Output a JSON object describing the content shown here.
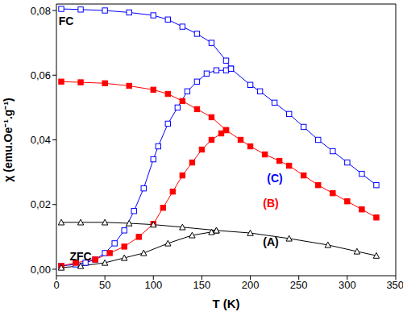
{
  "chart_data": {
    "type": "line",
    "x_label": "T (K)",
    "y_label": "χ (emu.Oe⁻¹.g⁻¹)",
    "xlim": [
      0,
      350
    ],
    "xticks": [
      0,
      50,
      100,
      150,
      200,
      250,
      300,
      350
    ],
    "ylim": [
      -0.002,
      0.082
    ],
    "yticks": [
      {
        "value": 0,
        "label": "0,00"
      },
      {
        "value": 0.02,
        "label": "0,02"
      },
      {
        "value": 0.04,
        "label": "0,04"
      },
      {
        "value": 0.06,
        "label": "0,06"
      },
      {
        "value": 0.08,
        "label": "0,08"
      }
    ],
    "grid": false,
    "annotations": [
      {
        "text": "FC",
        "color": "#000000"
      },
      {
        "text": "ZFC",
        "color": "#000000"
      },
      {
        "text": "(C)",
        "color": "#0000ff"
      },
      {
        "text": "(B)",
        "color": "#ff0000"
      },
      {
        "text": "(A)",
        "color": "#000000"
      }
    ],
    "series": [
      {
        "color": "#0000ff",
        "marker": "square-open",
        "x": [
          5,
          25,
          50,
          75,
          100,
          115,
          130,
          145,
          160,
          175,
          180,
          200,
          210,
          225,
          240,
          255,
          270,
          285,
          300,
          315,
          330
        ],
        "values": [
          0.0805,
          0.0803,
          0.08,
          0.0794,
          0.0785,
          0.0772,
          0.075,
          0.0728,
          0.07,
          0.0645,
          0.062,
          0.057,
          0.055,
          0.0515,
          0.048,
          0.044,
          0.04,
          0.0365,
          0.033,
          0.0295,
          0.026
        ]
      },
      {
        "color": "#0000ff",
        "marker": "square-open",
        "x": [
          5,
          20,
          30,
          40,
          50,
          60,
          70,
          80,
          90,
          100,
          105,
          115,
          125,
          135,
          145,
          155,
          165,
          175,
          180
        ],
        "values": [
          0.001,
          0.0015,
          0.002,
          0.003,
          0.005,
          0.008,
          0.012,
          0.018,
          0.025,
          0.034,
          0.038,
          0.045,
          0.05,
          0.055,
          0.058,
          0.0605,
          0.0615,
          0.0615,
          0.062
        ]
      },
      {
        "color": "#ff0000",
        "marker": "square-filled",
        "x": [
          5,
          25,
          50,
          75,
          100,
          115,
          130,
          145,
          160,
          175,
          190,
          200,
          215,
          230,
          240,
          255,
          270,
          285,
          300,
          315,
          330
        ],
        "values": [
          0.058,
          0.0578,
          0.0575,
          0.0567,
          0.0555,
          0.0542,
          0.052,
          0.0495,
          0.047,
          0.043,
          0.04,
          0.038,
          0.0355,
          0.0335,
          0.032,
          0.029,
          0.026,
          0.0235,
          0.021,
          0.0185,
          0.016
        ]
      },
      {
        "color": "#ff0000",
        "marker": "square-filled",
        "x": [
          5,
          20,
          40,
          55,
          70,
          85,
          100,
          110,
          120,
          130,
          140,
          150,
          160,
          170,
          175
        ],
        "values": [
          0.001,
          0.002,
          0.003,
          0.005,
          0.007,
          0.01,
          0.014,
          0.019,
          0.024,
          0.029,
          0.033,
          0.037,
          0.04,
          0.042,
          0.043
        ]
      },
      {
        "color": "#000000",
        "marker": "triangle-open",
        "x": [
          5,
          25,
          50,
          75,
          100,
          130,
          165,
          200,
          240,
          280,
          310,
          330
        ],
        "values": [
          0.0145,
          0.0145,
          0.0145,
          0.0142,
          0.0138,
          0.013,
          0.012,
          0.0112,
          0.0095,
          0.0075,
          0.0055,
          0.0042
        ]
      },
      {
        "color": "#000000",
        "marker": "triangle-open",
        "x": [
          5,
          25,
          50,
          70,
          90,
          115,
          140,
          160,
          165
        ],
        "values": [
          0.0005,
          0.001,
          0.002,
          0.0035,
          0.005,
          0.008,
          0.0105,
          0.0115,
          0.012
        ]
      }
    ]
  }
}
